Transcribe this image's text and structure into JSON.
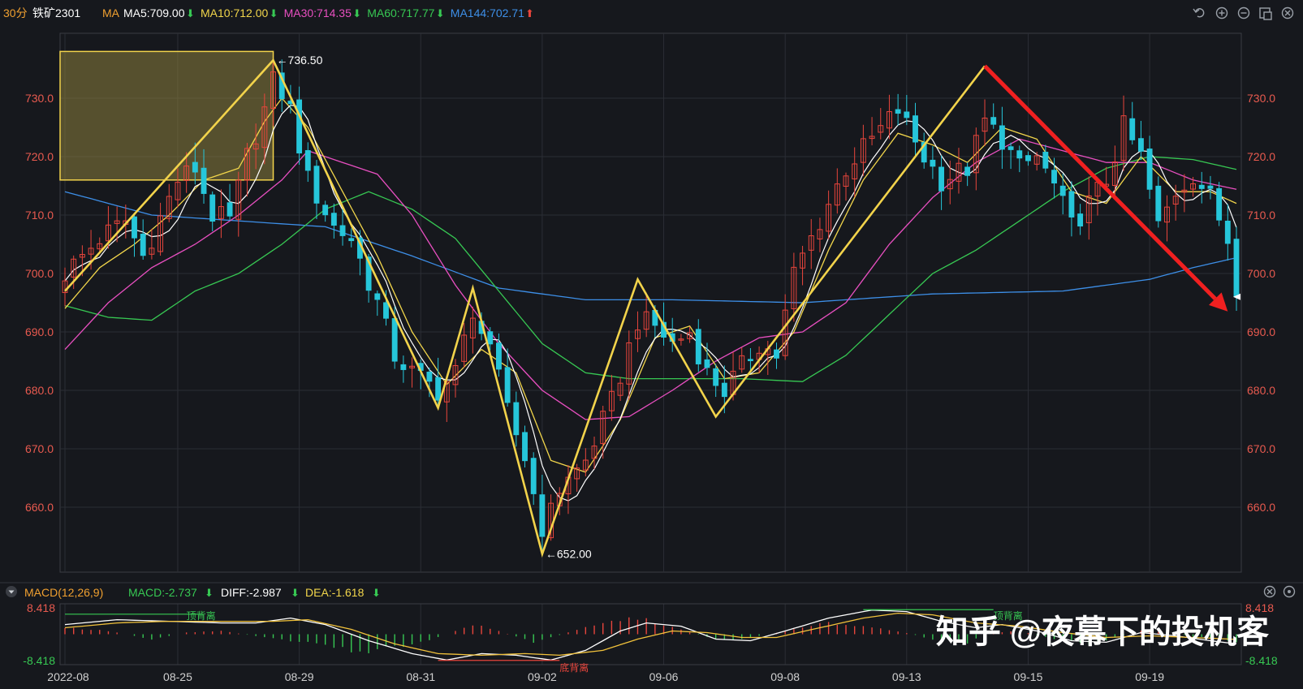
{
  "header": {
    "period": "30分",
    "symbol": "铁矿2301",
    "ma_label": "MA",
    "ma_items": [
      {
        "label": "MA5:709.00",
        "arrow": "down",
        "color": "#ffffff"
      },
      {
        "label": "MA10:712.00",
        "arrow": "down",
        "color": "#f2d64b"
      },
      {
        "label": "MA30:714.35",
        "arrow": "down",
        "color": "#e84fc0"
      },
      {
        "label": "MA60:717.77",
        "arrow": "down",
        "color": "#37c853"
      },
      {
        "label": "MA144:702.71",
        "arrow": "up",
        "color": "#3d8fe8"
      }
    ],
    "icons": [
      "undo-icon",
      "zoom-in-icon",
      "zoom-out-icon",
      "layout-icon",
      "close-icon"
    ]
  },
  "macd_header": {
    "title": "MACD(12,26,9)",
    "macd": "MACD:-2.737",
    "diff": "DIFF:-2.987",
    "dea": "DEA:-1.618"
  },
  "watermark": "知乎 @夜幕下的投机客",
  "chart_data": {
    "type": "candlestick",
    "y_axis": {
      "range": [
        650,
        740
      ],
      "ticks": [
        "730.0",
        "720.0",
        "710.0",
        "700.0",
        "690.0",
        "680.0",
        "670.0",
        "660.0"
      ],
      "tick_values": [
        730,
        720,
        710,
        700,
        690,
        680,
        670,
        660
      ]
    },
    "x_ticks": [
      {
        "label": "2022-08",
        "pos": 0
      },
      {
        "label": "08-25",
        "pos": 13
      },
      {
        "label": "08-29",
        "pos": 27
      },
      {
        "label": "08-31",
        "pos": 41
      },
      {
        "label": "09-02",
        "pos": 55
      },
      {
        "label": "09-06",
        "pos": 69
      },
      {
        "label": "09-08",
        "pos": 83
      },
      {
        "label": "09-13",
        "pos": 97
      },
      {
        "label": "09-15",
        "pos": 111
      },
      {
        "label": "09-19",
        "pos": 125
      }
    ],
    "total_bars": 136,
    "annotations": {
      "high": {
        "label": "736.50",
        "value": 736.5,
        "pos": 24
      },
      "low": {
        "label": "652.00",
        "value": 652.0,
        "pos": 55
      },
      "last_close": 696.0
    },
    "zigzag": [
      {
        "pos": 0,
        "value": 697.0
      },
      {
        "pos": 24,
        "value": 736.5
      },
      {
        "pos": 43,
        "value": 677.0
      },
      {
        "pos": 47,
        "value": 697.5
      },
      {
        "pos": 55,
        "value": 652.0
      },
      {
        "pos": 66,
        "value": 699.0
      },
      {
        "pos": 75,
        "value": 675.5
      },
      {
        "pos": 106,
        "value": 735.5
      }
    ],
    "trend_arrow": {
      "from": {
        "pos": 106,
        "value": 735.5
      },
      "to": {
        "pos": 134,
        "value": 693.5
      }
    },
    "box": {
      "pos_from": 0,
      "pos_to": 24,
      "value_from": 716.0,
      "value_to": 738.0
    },
    "price_anchors": [
      [
        0,
        700.0
      ],
      [
        4,
        706.0
      ],
      [
        7,
        709.0
      ],
      [
        9,
        703.0
      ],
      [
        13,
        716.0
      ],
      [
        15,
        718.0
      ],
      [
        17,
        710.0
      ],
      [
        19,
        709.0
      ],
      [
        21,
        720.0
      ],
      [
        23,
        728.0
      ],
      [
        24,
        734.0
      ],
      [
        26,
        728.0
      ],
      [
        28,
        716.0
      ],
      [
        31,
        708.0
      ],
      [
        33,
        706.0
      ],
      [
        36,
        695.0
      ],
      [
        38,
        686.0
      ],
      [
        40,
        683.0
      ],
      [
        43,
        680.0
      ],
      [
        45,
        683.0
      ],
      [
        47,
        694.0
      ],
      [
        49,
        686.0
      ],
      [
        51,
        678.0
      ],
      [
        53,
        668.0
      ],
      [
        55,
        660.0
      ],
      [
        57,
        663.0
      ],
      [
        60,
        668.0
      ],
      [
        63,
        678.0
      ],
      [
        66,
        692.0
      ],
      [
        68,
        691.0
      ],
      [
        70,
        688.0
      ],
      [
        72,
        690.0
      ],
      [
        74,
        683.0
      ],
      [
        76,
        680.0
      ],
      [
        78,
        684.0
      ],
      [
        80,
        688.0
      ],
      [
        82,
        686.0
      ],
      [
        84,
        700.0
      ],
      [
        86,
        706.0
      ],
      [
        88,
        712.0
      ],
      [
        90,
        718.0
      ],
      [
        93,
        723.0
      ],
      [
        96,
        728.0
      ],
      [
        99,
        720.0
      ],
      [
        101,
        716.0
      ],
      [
        104,
        718.0
      ],
      [
        106,
        726.0
      ],
      [
        108,
        723.0
      ],
      [
        110,
        718.0
      ],
      [
        112,
        720.0
      ],
      [
        114,
        715.0
      ],
      [
        116,
        708.0
      ],
      [
        118,
        712.0
      ],
      [
        120,
        716.0
      ],
      [
        122,
        725.0
      ],
      [
        124,
        720.0
      ],
      [
        126,
        708.0
      ],
      [
        128,
        714.0
      ],
      [
        130,
        717.0
      ],
      [
        132,
        713.0
      ],
      [
        134,
        706.0
      ],
      [
        135,
        696.0
      ]
    ],
    "ma_anchors": {
      "ma144": [
        [
          0,
          714.0
        ],
        [
          10,
          710.0
        ],
        [
          20,
          709.0
        ],
        [
          30,
          708.0
        ],
        [
          40,
          703.0
        ],
        [
          50,
          697.5
        ],
        [
          60,
          695.5
        ],
        [
          70,
          695.5
        ],
        [
          85,
          695.0
        ],
        [
          100,
          696.5
        ],
        [
          115,
          697.0
        ],
        [
          125,
          699.0
        ],
        [
          130,
          701.0
        ],
        [
          135,
          702.7
        ]
      ],
      "ma60": [
        [
          0,
          694.5
        ],
        [
          5,
          692.5
        ],
        [
          10,
          692.0
        ],
        [
          15,
          697.0
        ],
        [
          20,
          700.0
        ],
        [
          25,
          705.0
        ],
        [
          30,
          711.0
        ],
        [
          35,
          714.0
        ],
        [
          40,
          711.0
        ],
        [
          45,
          706.0
        ],
        [
          50,
          697.0
        ],
        [
          55,
          688.0
        ],
        [
          60,
          683.0
        ],
        [
          65,
          682.0
        ],
        [
          70,
          682.0
        ],
        [
          78,
          682.0
        ],
        [
          85,
          681.5
        ],
        [
          90,
          686.0
        ],
        [
          95,
          693.0
        ],
        [
          100,
          700.0
        ],
        [
          105,
          704.0
        ],
        [
          110,
          709.0
        ],
        [
          115,
          714.0
        ],
        [
          120,
          718.0
        ],
        [
          125,
          720.0
        ],
        [
          130,
          719.5
        ],
        [
          135,
          717.8
        ]
      ],
      "ma30": [
        [
          0,
          687.0
        ],
        [
          5,
          695.0
        ],
        [
          10,
          701.0
        ],
        [
          15,
          705.0
        ],
        [
          20,
          710.0
        ],
        [
          25,
          716.0
        ],
        [
          28,
          721.0
        ],
        [
          32,
          719.0
        ],
        [
          36,
          717.0
        ],
        [
          40,
          710.0
        ],
        [
          45,
          698.0
        ],
        [
          50,
          688.0
        ],
        [
          55,
          680.0
        ],
        [
          60,
          675.0
        ],
        [
          65,
          675.5
        ],
        [
          70,
          680.0
        ],
        [
          75,
          685.0
        ],
        [
          80,
          689.0
        ],
        [
          85,
          690.0
        ],
        [
          90,
          695.0
        ],
        [
          95,
          705.0
        ],
        [
          100,
          713.0
        ],
        [
          105,
          719.0
        ],
        [
          110,
          723.0
        ],
        [
          115,
          721.0
        ],
        [
          120,
          719.0
        ],
        [
          125,
          719.0
        ],
        [
          130,
          716.0
        ],
        [
          135,
          714.4
        ]
      ],
      "ma10": [
        [
          0,
          694.0
        ],
        [
          4,
          701.0
        ],
        [
          8,
          705.0
        ],
        [
          12,
          710.0
        ],
        [
          16,
          716.0
        ],
        [
          20,
          718.0
        ],
        [
          23,
          726.0
        ],
        [
          25,
          730.0
        ],
        [
          28,
          725.0
        ],
        [
          32,
          714.0
        ],
        [
          36,
          703.0
        ],
        [
          40,
          690.0
        ],
        [
          44,
          681.0
        ],
        [
          48,
          687.0
        ],
        [
          52,
          683.0
        ],
        [
          56,
          668.0
        ],
        [
          60,
          666.0
        ],
        [
          64,
          675.0
        ],
        [
          68,
          689.0
        ],
        [
          72,
          691.0
        ],
        [
          76,
          682.0
        ],
        [
          80,
          683.0
        ],
        [
          84,
          690.0
        ],
        [
          88,
          704.0
        ],
        [
          92,
          716.0
        ],
        [
          96,
          724.0
        ],
        [
          100,
          722.0
        ],
        [
          104,
          719.0
        ],
        [
          108,
          725.0
        ],
        [
          112,
          723.0
        ],
        [
          116,
          714.0
        ],
        [
          120,
          712.0
        ],
        [
          124,
          720.0
        ],
        [
          128,
          714.0
        ],
        [
          132,
          714.0
        ],
        [
          135,
          712.0
        ]
      ]
    },
    "macd": {
      "range": [
        -8.418,
        8.418
      ],
      "top_label": "8.418",
      "bottom_label": "-8.418",
      "hist_anchors": [
        [
          0,
          2.0
        ],
        [
          5,
          1.0
        ],
        [
          10,
          -1.5
        ],
        [
          14,
          0.5
        ],
        [
          18,
          1.0
        ],
        [
          22,
          -0.5
        ],
        [
          26,
          -2.0
        ],
        [
          30,
          -3.5
        ],
        [
          34,
          -5.5
        ],
        [
          38,
          -4.0
        ],
        [
          42,
          -2.0
        ],
        [
          45,
          1.0
        ],
        [
          47,
          3.0
        ],
        [
          50,
          1.0
        ],
        [
          54,
          -2.5
        ],
        [
          56,
          -1.0
        ],
        [
          60,
          2.0
        ],
        [
          64,
          4.5
        ],
        [
          66,
          5.0
        ],
        [
          69,
          3.0
        ],
        [
          72,
          0.5
        ],
        [
          76,
          -2.0
        ],
        [
          79,
          -1.0
        ],
        [
          82,
          0.5
        ],
        [
          85,
          2.0
        ],
        [
          88,
          3.5
        ],
        [
          92,
          2.5
        ],
        [
          96,
          1.0
        ],
        [
          100,
          -1.5
        ],
        [
          104,
          -2.5
        ],
        [
          107,
          0.5
        ],
        [
          110,
          1.0
        ],
        [
          114,
          -1.5
        ],
        [
          118,
          -3.0
        ],
        [
          121,
          -1.0
        ],
        [
          124,
          1.0
        ],
        [
          127,
          0.5
        ],
        [
          131,
          -1.0
        ],
        [
          135,
          -2.7
        ]
      ],
      "diff_anchors": [
        [
          0,
          3.0
        ],
        [
          6,
          4.5
        ],
        [
          12,
          4.0
        ],
        [
          18,
          3.5
        ],
        [
          22,
          3.5
        ],
        [
          26,
          5.0
        ],
        [
          30,
          3.0
        ],
        [
          35,
          -2.0
        ],
        [
          40,
          -6.0
        ],
        [
          44,
          -8.0
        ],
        [
          48,
          -6.0
        ],
        [
          52,
          -6.5
        ],
        [
          56,
          -8.0
        ],
        [
          60,
          -5.0
        ],
        [
          64,
          1.0
        ],
        [
          67,
          3.5
        ],
        [
          71,
          2.5
        ],
        [
          75,
          -1.5
        ],
        [
          79,
          -2.0
        ],
        [
          83,
          1.0
        ],
        [
          88,
          5.0
        ],
        [
          93,
          7.5
        ],
        [
          97,
          7.0
        ],
        [
          101,
          4.0
        ],
        [
          105,
          2.0
        ],
        [
          108,
          3.0
        ],
        [
          112,
          1.0
        ],
        [
          116,
          -2.0
        ],
        [
          120,
          -2.5
        ],
        [
          124,
          0.5
        ],
        [
          128,
          -0.5
        ],
        [
          132,
          -2.0
        ],
        [
          135,
          -3.0
        ]
      ],
      "dea_anchors": [
        [
          0,
          2.0
        ],
        [
          6,
          3.5
        ],
        [
          12,
          4.0
        ],
        [
          18,
          4.0
        ],
        [
          24,
          4.0
        ],
        [
          28,
          4.5
        ],
        [
          33,
          1.5
        ],
        [
          38,
          -3.0
        ],
        [
          43,
          -6.0
        ],
        [
          48,
          -6.5
        ],
        [
          53,
          -6.0
        ],
        [
          57,
          -6.5
        ],
        [
          62,
          -5.0
        ],
        [
          66,
          -1.5
        ],
        [
          70,
          1.0
        ],
        [
          74,
          0.5
        ],
        [
          78,
          -1.0
        ],
        [
          82,
          -1.0
        ],
        [
          87,
          2.0
        ],
        [
          92,
          5.0
        ],
        [
          96,
          6.5
        ],
        [
          100,
          6.0
        ],
        [
          105,
          3.5
        ],
        [
          110,
          2.5
        ],
        [
          115,
          0.5
        ],
        [
          120,
          -1.0
        ],
        [
          125,
          -0.5
        ],
        [
          130,
          -1.0
        ],
        [
          135,
          -1.6
        ]
      ],
      "labels": [
        {
          "text": "顶背离",
          "pos": 14,
          "where": "top",
          "color": "#37c853"
        },
        {
          "text": "顶背离",
          "pos": 107,
          "where": "top",
          "color": "#37c853"
        },
        {
          "text": "底背离",
          "pos": 57,
          "where": "bottom",
          "color": "#e8453c"
        }
      ],
      "lines": [
        {
          "from": 0,
          "to": 16,
          "value": 6.2,
          "color": "#37c853"
        },
        {
          "from": 92,
          "to": 107,
          "value": 7.6,
          "color": "#37c853"
        },
        {
          "from": 43,
          "to": 57,
          "value": -8.1,
          "color": "#e8453c"
        }
      ]
    },
    "colors": {
      "up": "#e8453c",
      "down": "#26c6da",
      "zigzag": "#f2d34b",
      "arrow": "#f02020",
      "grid": "#2b2e35",
      "axis_text_price": "#e85a4f",
      "axis_text_time": "#d0d0d0"
    }
  }
}
